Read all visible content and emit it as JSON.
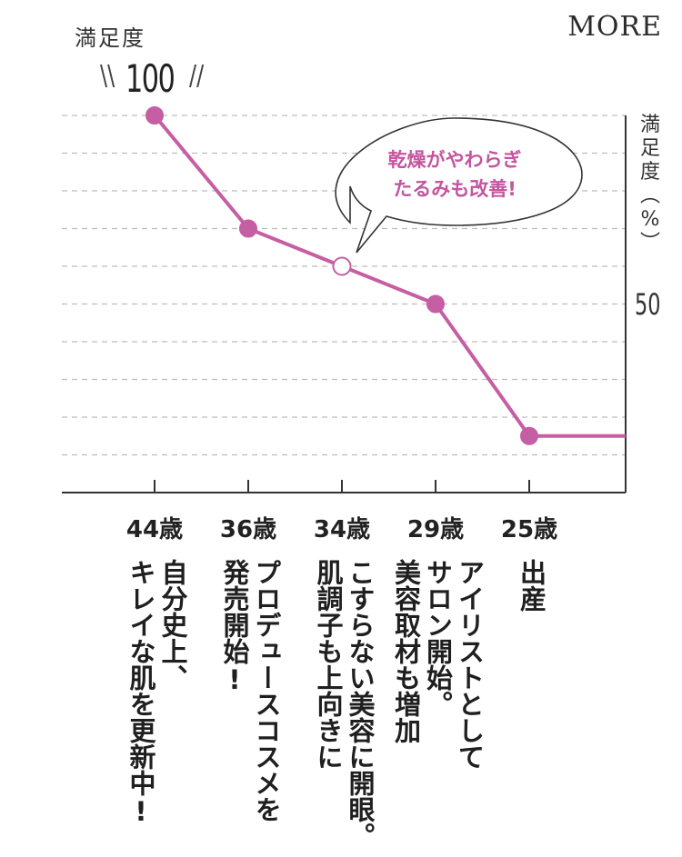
{
  "brand": "MORE",
  "left_axis_title": "満足度",
  "max_label": "100",
  "max_marks_left": "\\\\",
  "max_marks_right": "//",
  "right_axis_title": [
    "満",
    "足",
    "度",
    "︵",
    "%",
    "︶"
  ],
  "mid_tick_label": "50",
  "bubble": {
    "line1": "乾燥がやわらぎ",
    "line2": "たるみも改善!"
  },
  "colors": {
    "line": "#c65ea3",
    "grid": "#bdbdbd",
    "axis": "#333333",
    "bubble_text": "#c4559f"
  },
  "chart_data": {
    "type": "line",
    "title": "",
    "xlabel": "",
    "ylabel": "満足度(%)",
    "y_ticks_labeled": [
      50,
      100
    ],
    "ylim": [
      0,
      100
    ],
    "categories": [
      "44歳",
      "36歳",
      "34歳",
      "29歳",
      "25歳"
    ],
    "values": [
      100,
      70,
      60,
      50,
      15
    ],
    "point_style": [
      "filled",
      "filled",
      "hollow",
      "filled",
      "filled"
    ],
    "grid": true,
    "events": [
      "自分史上、\nキレイな肌を更新中!",
      "プロデュースコスメを\n発売開始!",
      "こすらない美容に開眼。\n肌調子も上向きに",
      "アイリストとして\nサロン開始。\n美容取材も増加",
      "出産"
    ]
  }
}
